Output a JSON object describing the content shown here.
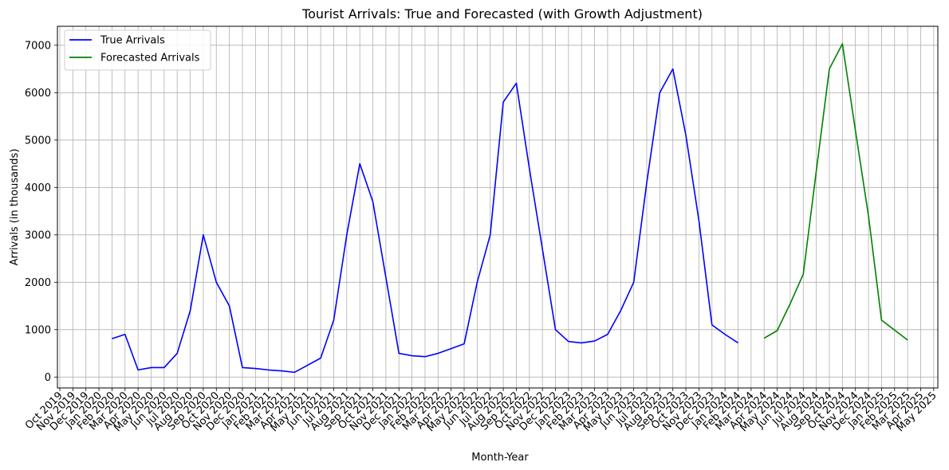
{
  "chart_data": {
    "type": "line",
    "title": "Tourist Arrivals: True and Forecasted (with Growth Adjustment)",
    "xlabel": "Month-Year",
    "ylabel": "Arrivals (in thousands)",
    "ylim": [
      -230,
      7400
    ],
    "yticks": [
      0,
      1000,
      2000,
      3000,
      4000,
      5000,
      6000,
      7000
    ],
    "grid": true,
    "legend_position": "top-left",
    "x_tick_labels": [
      "Oct 2019",
      "Nov 2019",
      "Dec 2019",
      "Jan 2020",
      "Feb 2020",
      "Mar 2020",
      "Apr 2020",
      "May 2020",
      "Jun 2020",
      "Jul 2020",
      "Aug 2020",
      "Sep 2020",
      "Oct 2020",
      "Nov 2020",
      "Dec 2020",
      "Jan 2021",
      "Feb 2021",
      "Mar 2021",
      "Apr 2021",
      "May 2021",
      "Jun 2021",
      "Jul 2021",
      "Aug 2021",
      "Sep 2021",
      "Oct 2021",
      "Nov 2021",
      "Dec 2021",
      "Jan 2022",
      "Feb 2022",
      "Mar 2022",
      "Apr 2022",
      "May 2022",
      "Jun 2022",
      "Jul 2022",
      "Aug 2022",
      "Sep 2022",
      "Oct 2022",
      "Nov 2022",
      "Dec 2022",
      "Jan 2023",
      "Feb 2023",
      "Mar 2023",
      "Apr 2023",
      "May 2023",
      "Jun 2023",
      "Jul 2023",
      "Aug 2023",
      "Sep 2023",
      "Oct 2023",
      "Nov 2023",
      "Dec 2023",
      "Jan 2024",
      "Feb 2024",
      "Mar 2024",
      "Apr 2024",
      "May 2024",
      "Jun 2024",
      "Jul 2024",
      "Aug 2024",
      "Sep 2024",
      "Oct 2024",
      "Nov 2024",
      "Dec 2024",
      "Jan 2025",
      "Feb 2025",
      "Mar 2025",
      "Apr 2025",
      "May 2025"
    ],
    "series": [
      {
        "name": "True Arrivals",
        "color": "#0000ff",
        "x": [
          "Feb 2020",
          "Mar 2020",
          "Apr 2020",
          "May 2020",
          "Jun 2020",
          "Jul 2020",
          "Aug 2020",
          "Sep 2020",
          "Oct 2020",
          "Nov 2020",
          "Dec 2020",
          "Jan 2021",
          "Feb 2021",
          "Mar 2021",
          "Apr 2021",
          "May 2021",
          "Jun 2021",
          "Jul 2021",
          "Aug 2021",
          "Sep 2021",
          "Oct 2021",
          "Nov 2021",
          "Dec 2021",
          "Jan 2022",
          "Feb 2022",
          "Mar 2022",
          "Apr 2022",
          "May 2022",
          "Jun 2022",
          "Jul 2022",
          "Aug 2022",
          "Sep 2022",
          "Oct 2022",
          "Nov 2022",
          "Dec 2022",
          "Jan 2023",
          "Feb 2023",
          "Mar 2023",
          "Apr 2023",
          "May 2023",
          "Jun 2023",
          "Jul 2023",
          "Aug 2023",
          "Sep 2023",
          "Oct 2023",
          "Nov 2023",
          "Dec 2023",
          "Jan 2024",
          "Feb 2024"
        ],
        "values": [
          810,
          900,
          150,
          200,
          200,
          500,
          1400,
          3000,
          2000,
          1500,
          200,
          180,
          150,
          130,
          100,
          250,
          400,
          1200,
          3000,
          4500,
          3700,
          2100,
          500,
          450,
          430,
          500,
          600,
          700,
          2000,
          3000,
          5800,
          6200,
          4400,
          2700,
          1000,
          750,
          720,
          760,
          900,
          1400,
          2000,
          4100,
          6000,
          6500,
          5100,
          3300,
          1100,
          900,
          720
        ]
      },
      {
        "name": "Forecasted Arrivals",
        "color": "#008000",
        "x": [
          "Apr 2024",
          "May 2024",
          "Jun 2024",
          "Jul 2024",
          "Aug 2024",
          "Sep 2024",
          "Oct 2024",
          "Nov 2024",
          "Dec 2024",
          "Jan 2025",
          "Feb 2025",
          "Mar 2025"
        ],
        "values": [
          820,
          980,
          1550,
          2170,
          4350,
          6500,
          7030,
          5200,
          3400,
          1200,
          990,
          780
        ]
      }
    ]
  }
}
